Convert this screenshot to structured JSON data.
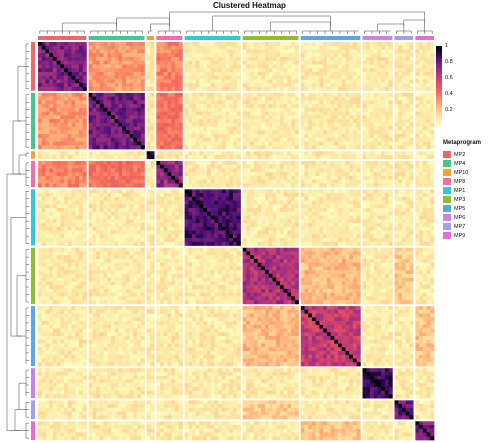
{
  "title": "Clustered Heatmap",
  "chart_data": {
    "type": "heatmap",
    "title": "Clustered Heatmap",
    "xlabel": "",
    "ylabel": "",
    "clusters": [
      {
        "name": "MP2",
        "size": 13,
        "color": "#ee6a6a",
        "within": 0.85
      },
      {
        "name": "MP4",
        "size": 15,
        "color": "#44c78f",
        "within": 0.88
      },
      {
        "name": "MP10",
        "size": 2,
        "color": "#f0a42a",
        "within": 0.92
      },
      {
        "name": "MP8",
        "size": 7,
        "color": "#ef6fae",
        "within": 0.8
      },
      {
        "name": "MP1",
        "size": 15,
        "color": "#34c8d4",
        "within": 0.95
      },
      {
        "name": "MP3",
        "size": 15,
        "color": "#8fbf2a",
        "within": 0.75
      },
      {
        "name": "MP5",
        "size": 16,
        "color": "#5aa7e6",
        "within": 0.7
      },
      {
        "name": "MP6",
        "size": 8,
        "color": "#cf80e8",
        "within": 0.97
      },
      {
        "name": "MP7",
        "size": 5,
        "color": "#a0a0ee",
        "within": 0.9
      },
      {
        "name": "MP9",
        "size": 5,
        "color": "#ea6ad6",
        "within": 0.85
      }
    ],
    "between_baseline": 0.08,
    "cross_blocks": [
      {
        "row": "MP2",
        "col": "MP4",
        "value": 0.3
      },
      {
        "row": "MP2",
        "col": "MP8",
        "value": 0.35
      },
      {
        "row": "MP4",
        "col": "MP8",
        "value": 0.4
      },
      {
        "row": "MP3",
        "col": "MP5",
        "value": 0.22
      },
      {
        "row": "MP5",
        "col": "MP9",
        "value": 0.2
      },
      {
        "row": "MP3",
        "col": "MP7",
        "value": 0.18
      }
    ],
    "colorbar": {
      "range": [
        0,
        1
      ],
      "ticks": [
        "1",
        "0.8",
        "0.6",
        "0.4",
        "0.2"
      ]
    },
    "legend": {
      "title": "Metaprogram",
      "placement": "right",
      "items": [
        "MP2",
        "MP4",
        "MP10",
        "MP8",
        "MP1",
        "MP3",
        "MP5",
        "MP6",
        "MP7",
        "MP9"
      ]
    }
  }
}
